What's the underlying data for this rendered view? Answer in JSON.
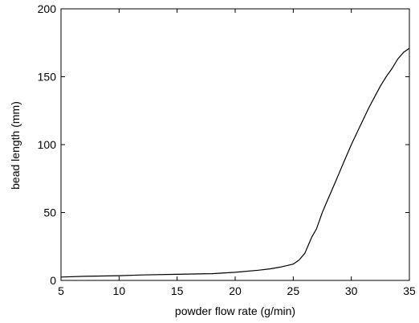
{
  "chart_data": {
    "type": "line",
    "title": "",
    "xlabel": "powder flow rate (g/min)",
    "ylabel": "bead length (mm)",
    "xlim": [
      5,
      35
    ],
    "ylim": [
      0,
      200
    ],
    "xticks": [
      5,
      10,
      15,
      20,
      25,
      30,
      35
    ],
    "yticks": [
      0,
      50,
      100,
      150,
      200
    ],
    "grid": false,
    "legend": "none",
    "line_color": "#000000",
    "series": [
      {
        "x": [
          5,
          7,
          10,
          12,
          15,
          18,
          20,
          22,
          23,
          24,
          25,
          25.5,
          26,
          26.3,
          26.6,
          27,
          27.5,
          28,
          28.5,
          29,
          29.5,
          30,
          30.5,
          31,
          31.5,
          32,
          32.5,
          33,
          33.5,
          34,
          34.5,
          35
        ],
        "y": [
          2.5,
          3,
          3.5,
          4,
          4.5,
          5,
          6,
          7.5,
          8.5,
          10,
          12,
          15,
          20,
          26,
          32,
          38,
          50,
          60,
          70,
          80,
          90,
          100,
          109,
          118,
          127,
          135,
          143,
          150,
          156,
          163,
          168,
          171
        ]
      }
    ]
  }
}
